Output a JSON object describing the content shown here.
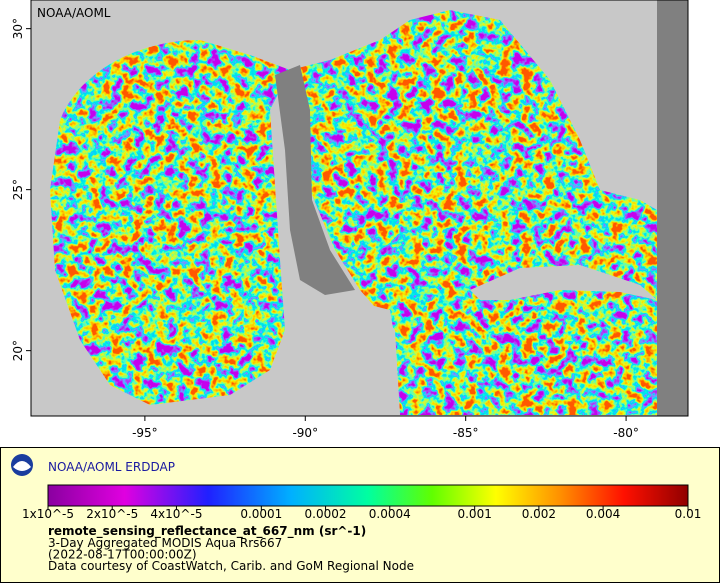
{
  "map": {
    "credit": "NOAA/AOML",
    "xlim": [
      -98.55,
      -78.07
    ],
    "ylim": [
      17.97,
      30.89
    ],
    "xticks": [
      {
        "value": -95,
        "label": "-95°"
      },
      {
        "value": -90,
        "label": "-90°"
      },
      {
        "value": -85,
        "label": "-85°"
      },
      {
        "value": -80,
        "label": "-80°"
      }
    ],
    "yticks": [
      {
        "value": 20,
        "label": "20°"
      },
      {
        "value": 25,
        "label": "25°"
      },
      {
        "value": 30,
        "label": "30°"
      }
    ]
  },
  "legend": {
    "title": "NOAA/AOML ERDDAP",
    "colorbar": {
      "scale": "log",
      "lim": [
        1e-05,
        0.01
      ],
      "ticks": [
        {
          "value": 1e-05,
          "label": "1x10^-5"
        },
        {
          "value": 2e-05,
          "label": "2x10^-5"
        },
        {
          "value": 4e-05,
          "label": "4x10^-5"
        },
        0.0001,
        0.0002,
        0.0004,
        0.001,
        0.002,
        0.004,
        0.01
      ]
    },
    "variable": "remote_sensing_reflectance_at_667_nm (sr^-1)",
    "lines": [
      "3-Day Aggregated MODIS Aqua Rrs667",
      "(2022-08-17T00:00:00Z)",
      "Data courtesy of CoastWatch, Carib. and GoM Regional Node"
    ]
  }
}
